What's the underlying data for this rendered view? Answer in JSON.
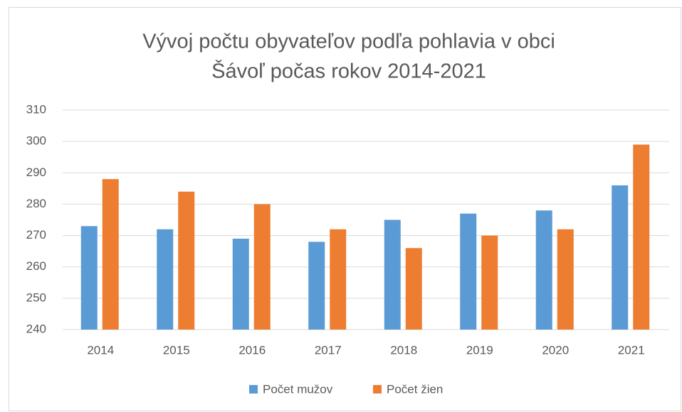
{
  "chart_data": {
    "type": "bar",
    "title": [
      "Vývoj počtu obyvateľov podľa pohlavia v obci",
      "Šávoľ počas rokov 2014-2021"
    ],
    "categories": [
      "2014",
      "2015",
      "2016",
      "2017",
      "2018",
      "2019",
      "2020",
      "2021"
    ],
    "series": [
      {
        "name": "Počet mužov",
        "color": "#5b9bd5",
        "values": [
          273,
          272,
          269,
          268,
          275,
          277,
          278,
          286
        ]
      },
      {
        "name": "Počet žien",
        "color": "#ed7d31",
        "values": [
          288,
          284,
          280,
          272,
          266,
          270,
          272,
          299
        ]
      }
    ],
    "ylim": [
      240,
      310
    ],
    "yticks": [
      240,
      250,
      260,
      270,
      280,
      290,
      300,
      310
    ],
    "grid": true,
    "legend": "bottom"
  }
}
